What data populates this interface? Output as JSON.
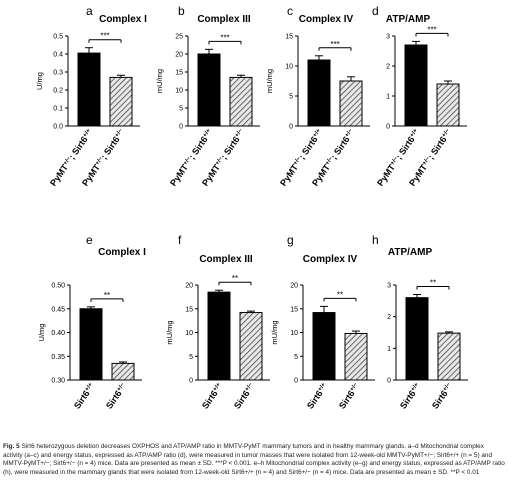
{
  "figure_caption": {
    "bold": "Fig. 5",
    "text": "Sirt6 heterozygous deletion decreases OXPHOS and ATP/AMP ratio in MMTV-PyMT mammary tumors and in healthy mammary glands. a–d Mitochondrial complex activity (a–c) and energy status, expressed as ATP/AMP ratio (d), were measured in tumor masses that were isolated from 12-week-old MMTV-PyMT+/−; Sirt6+/+ (n = 5) and MMTV-PyMT+/−; Sirt6+/− (n = 4) mice. Data are presented as mean ± SD. ***P < 0.001. e–h Mitochondrial complex activity (e–g) and energy status, expressed as ATP/AMP ratio (h), were measured in the mammary glands that were isolated from 12-week-old Sirt6+/+ (n = 4) and Sirt6+/− (n = 4) mice. Data are presented as mean ± SD. **P < 0.01"
  },
  "chart_data": [
    {
      "type": "bar",
      "panel": "a",
      "title": "Complex I",
      "ylabel": "U/mg",
      "ylim": [
        0,
        0.5
      ],
      "yticks": [
        "0.0",
        "0.1",
        "0.2",
        "0.3",
        "0.4",
        "0.5"
      ],
      "ytick_values": [
        0,
        0.1,
        0.2,
        0.3,
        0.4,
        0.5
      ],
      "categories": [
        "PyMT+/-; Sirt6+/+",
        "PyMT+/-; Sirt6+/-"
      ],
      "values": [
        0.405,
        0.27
      ],
      "errors": [
        0.03,
        0.012
      ],
      "significance": "***",
      "colors": [
        "#000000",
        "hatched"
      ]
    },
    {
      "type": "bar",
      "panel": "b",
      "title": "Complex III",
      "ylabel": "mU/mg",
      "ylim": [
        0,
        25
      ],
      "yticks": [
        "0",
        "5",
        "10",
        "15",
        "20",
        "25"
      ],
      "ytick_values": [
        0,
        5,
        10,
        15,
        20,
        25
      ],
      "categories": [
        "PyMT+/-; Sirt6+/+",
        "PyMT+/-; Sirt6+/-"
      ],
      "values": [
        20,
        13.5
      ],
      "errors": [
        1.3,
        0.6
      ],
      "significance": "***",
      "colors": [
        "#000000",
        "hatched"
      ]
    },
    {
      "type": "bar",
      "panel": "c",
      "title": "Complex IV",
      "ylabel": "mU/mg",
      "ylim": [
        0,
        15
      ],
      "yticks": [
        "0",
        "5",
        "10",
        "15"
      ],
      "ytick_values": [
        0,
        5,
        10,
        15
      ],
      "categories": [
        "PyMT+/-; Sirt6+/+",
        "PyMT+/-; Sirt6+/-"
      ],
      "values": [
        11,
        7.5
      ],
      "errors": [
        0.7,
        0.7
      ],
      "significance": "***",
      "colors": [
        "#000000",
        "hatched"
      ]
    },
    {
      "type": "bar",
      "panel": "d",
      "title": "ATP/AMP",
      "ylabel": "",
      "ylim": [
        0,
        3
      ],
      "yticks": [
        "0",
        "1",
        "2",
        "3"
      ],
      "ytick_values": [
        0,
        1,
        2,
        3
      ],
      "categories": [
        "PyMT+/-; Sirt6+/+",
        "PyMT+/-; Sirt6+/-"
      ],
      "values": [
        2.7,
        1.4
      ],
      "errors": [
        0.12,
        0.1
      ],
      "significance": "***",
      "colors": [
        "#000000",
        "hatched"
      ]
    },
    {
      "type": "bar",
      "panel": "e",
      "title": "Complex I",
      "ylabel": "U/mg",
      "ylim": [
        0.3,
        0.5
      ],
      "yticks": [
        "0.30",
        "0.35",
        "0.40",
        "0.45",
        "0.50"
      ],
      "ytick_values": [
        0.3,
        0.35,
        0.4,
        0.45,
        0.5
      ],
      "categories": [
        "Sirt6+/+",
        "Sirt6+/-"
      ],
      "values": [
        0.45,
        0.335
      ],
      "errors": [
        0.004,
        0.003
      ],
      "significance": "**",
      "colors": [
        "#000000",
        "hatched"
      ]
    },
    {
      "type": "bar",
      "panel": "f",
      "title": "Complex III",
      "ylabel": "mU/mg",
      "ylim": [
        0,
        20
      ],
      "yticks": [
        "0",
        "5",
        "10",
        "15",
        "20"
      ],
      "ytick_values": [
        0,
        5,
        10,
        15,
        20
      ],
      "categories": [
        "Sirt6+/+",
        "Sirt6+/-"
      ],
      "values": [
        18.5,
        14.2
      ],
      "errors": [
        0.4,
        0.3
      ],
      "significance": "**",
      "colors": [
        "#000000",
        "hatched"
      ]
    },
    {
      "type": "bar",
      "panel": "g",
      "title": "Complex IV",
      "ylabel": "mU/mg",
      "ylim": [
        0,
        20
      ],
      "yticks": [
        "0",
        "5",
        "10",
        "15",
        "20"
      ],
      "ytick_values": [
        0,
        5,
        10,
        15,
        20
      ],
      "categories": [
        "Sirt6+/+",
        "Sirt6+/-"
      ],
      "values": [
        14.2,
        9.8
      ],
      "errors": [
        1.3,
        0.5
      ],
      "significance": "**",
      "colors": [
        "#000000",
        "hatched"
      ]
    },
    {
      "type": "bar",
      "panel": "h",
      "title": "ATP/AMP",
      "ylabel": "",
      "ylim": [
        0,
        3
      ],
      "yticks": [
        "0",
        "1",
        "2",
        "3"
      ],
      "ytick_values": [
        0,
        1,
        2,
        3
      ],
      "categories": [
        "Sirt6+/+",
        "Sirt6+/-"
      ],
      "values": [
        2.6,
        1.48
      ],
      "errors": [
        0.1,
        0.04
      ],
      "significance": "**",
      "colors": [
        "#000000",
        "hatched"
      ]
    }
  ]
}
